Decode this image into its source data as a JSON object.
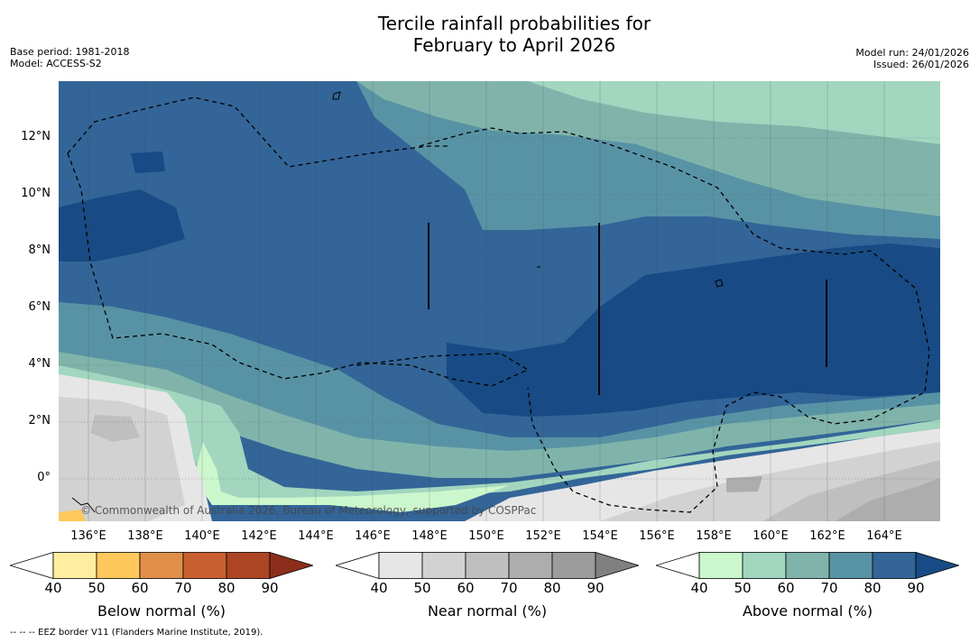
{
  "title_line1": "Tercile rainfall probabilities for",
  "title_line2": "February to April 2026",
  "meta_left": {
    "base_period": "Base period: 1981-2018",
    "model": "Model: ACCESS-S2"
  },
  "meta_right": {
    "model_run": "Model run: 24/01/2026",
    "issued": "Issued: 26/01/2026"
  },
  "map": {
    "lon_labels": [
      "136°E",
      "138°E",
      "140°E",
      "142°E",
      "144°E",
      "146°E",
      "148°E",
      "150°E",
      "152°E",
      "154°E",
      "156°E",
      "158°E",
      "160°E",
      "162°E",
      "164°E"
    ],
    "lat_labels": [
      "12°N",
      "10°N",
      "8°N",
      "6°N",
      "4°N",
      "2°N",
      "0°"
    ],
    "copyright": "© Commonwealth of Australia 2026, Bureau of Meteorology, supported by COSPPac"
  },
  "colorbars": [
    {
      "title": "Below normal (%)",
      "ticks": [
        "40",
        "50",
        "60",
        "70",
        "80",
        "90"
      ],
      "colors": [
        "#ffffff",
        "#ffeda0",
        "#fec85c",
        "#e08f48",
        "#c95f30",
        "#ad4524",
        "#8b2e1b"
      ]
    },
    {
      "title": "Near normal (%)",
      "ticks": [
        "40",
        "50",
        "60",
        "70",
        "80",
        "90"
      ],
      "colors": [
        "#ffffff",
        "#e6e6e6",
        "#d2d2d2",
        "#bfbfbf",
        "#adadad",
        "#9c9c9c",
        "#808080"
      ]
    },
    {
      "title": "Above normal (%)",
      "ticks": [
        "40",
        "50",
        "60",
        "70",
        "80",
        "90"
      ],
      "colors": [
        "#ffffff",
        "#ccf7cc",
        "#a2d6bf",
        "#80b4ab",
        "#5893a5",
        "#336598",
        "#184b85"
      ]
    }
  ],
  "footnote": "--  --  -- EEZ border V11 (Flanders Marine Institute, 2019)."
}
